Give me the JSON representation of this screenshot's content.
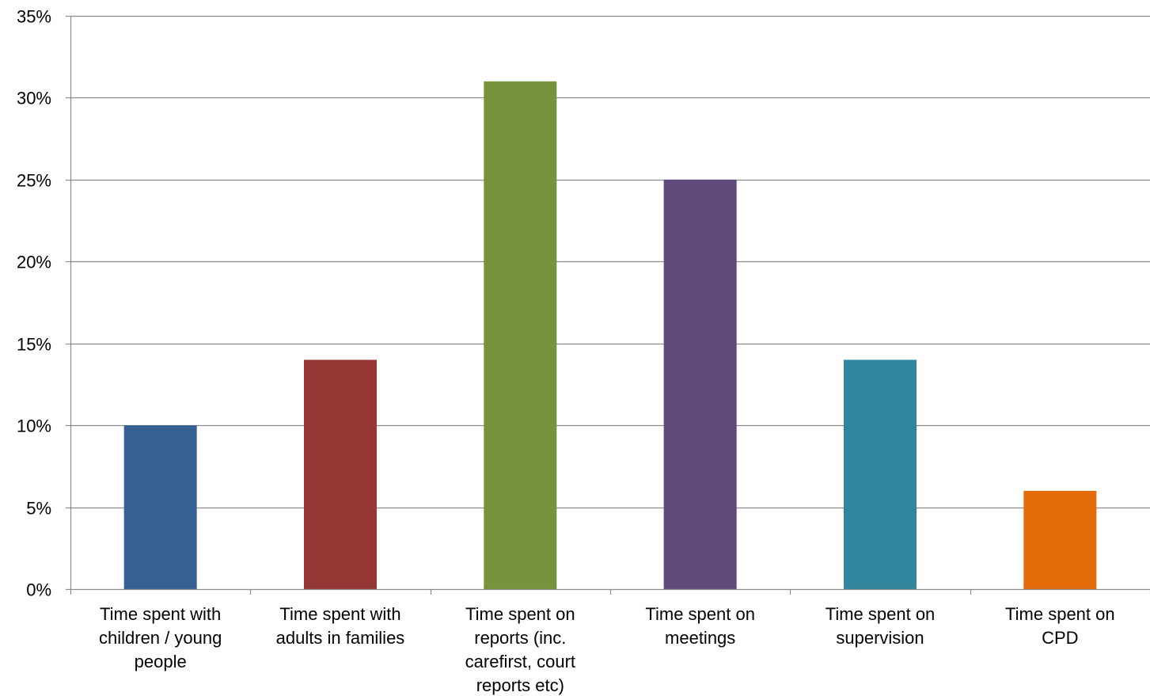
{
  "chart_data": {
    "type": "bar",
    "title": "",
    "xlabel": "",
    "ylabel": "",
    "ylim": [
      0,
      35
    ],
    "ytick_step": 5,
    "ytick_suffix": "%",
    "grid": true,
    "legend": "none",
    "categories": [
      [
        "Time spent with",
        "children / young",
        "people"
      ],
      [
        "Time spent with",
        "adults in families"
      ],
      [
        "Time spent on",
        "reports (inc.",
        "carefirst, court",
        "reports etc)"
      ],
      [
        "Time spent on",
        "meetings"
      ],
      [
        "Time spent on",
        "supervision"
      ],
      [
        "Time spent on",
        "CPD"
      ]
    ],
    "values": [
      10,
      14,
      31,
      25,
      14,
      6
    ],
    "colors": [
      "#376092",
      "#953735",
      "#77933C",
      "#604A7B",
      "#31859C",
      "#E46C0A"
    ],
    "grid_color": "#8c8c8c",
    "axis_color": "#8c8c8c"
  }
}
